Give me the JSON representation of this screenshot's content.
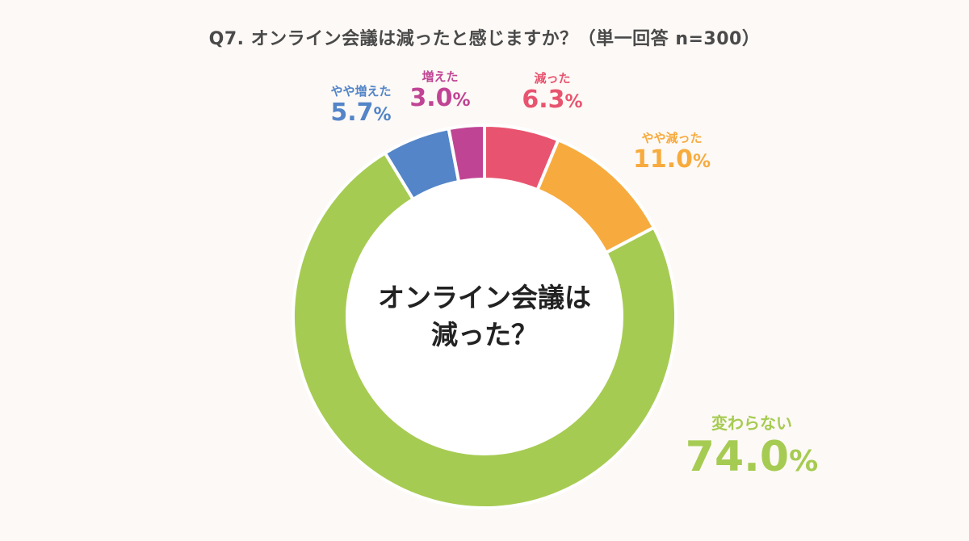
{
  "title": "Q7. オンライン会議は減ったと感じますか？（単一回答 n=300）",
  "center_label": [
    "オンライン会議は",
    "減った？"
  ],
  "chart_data": {
    "type": "pie",
    "donut": true,
    "title": "Q7. オンライン会議は減ったと感じますか？（単一回答 n=300）",
    "n": 300,
    "unit": "%",
    "slices": [
      {
        "label": "減った",
        "value": 6.3,
        "value_text": "6.3",
        "color": "#e8546f"
      },
      {
        "label": "やや減った",
        "value": 11.0,
        "value_text": "11.0",
        "color": "#f7ab3e"
      },
      {
        "label": "変わらない",
        "value": 74.0,
        "value_text": "74.0",
        "color": "#a6cb52"
      },
      {
        "label": "やや増えた",
        "value": 5.7,
        "value_text": "5.7",
        "color": "#5385c8"
      },
      {
        "label": "増えた",
        "value": 3.0,
        "value_text": "3.0",
        "color": "#c04494"
      }
    ]
  }
}
